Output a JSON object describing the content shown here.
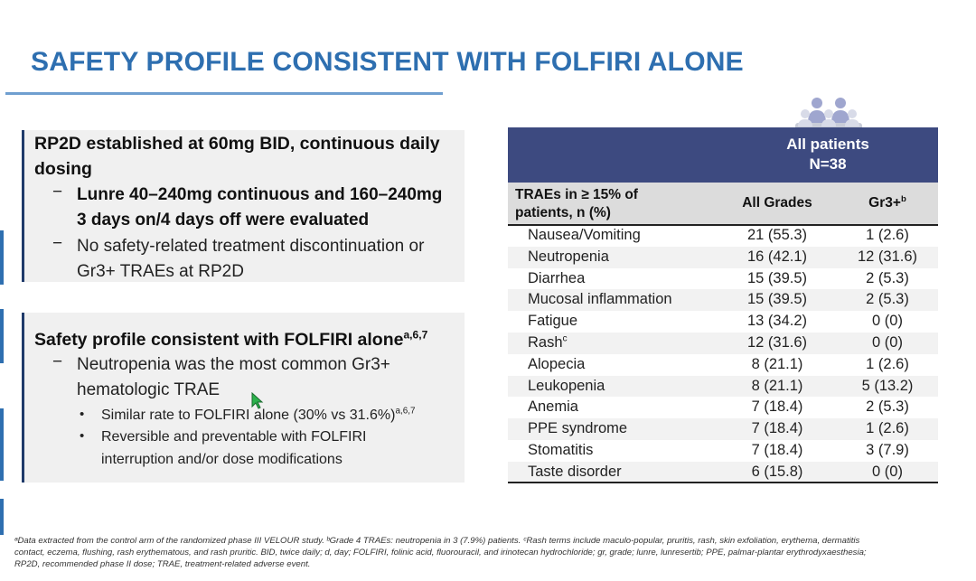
{
  "slide": {
    "title": "SAFETY PROFILE CONSISTENT WITH FOLFIRI ALONE"
  },
  "panel1": {
    "heading_line1": "RP2D established at 60mg BID, continuous daily",
    "heading_line2": "dosing",
    "sub1_line1": "Lunre 40–240mg continuous and 160–240mg",
    "sub1_line2": "3 days on/4 days off were evaluated",
    "sub2_line1": "No safety-related treatment discontinuation or",
    "sub2_line2": "Gr3+ TRAEs at RP2D",
    "dash": "−"
  },
  "panel2": {
    "heading": "Safety profile consistent with FOLFIRI alone",
    "heading_sup": "a,6,7",
    "sub1_line1": "Neutropenia was the most common Gr3+",
    "sub1_line2": "hematologic TRAE",
    "bullet1": "Similar rate to FOLFIRI alone (30% vs 31.6%)",
    "bullet1_sup": "a,6,7",
    "bullet2_line1": "Reversible and preventable with FOLFIRI",
    "bullet2_line2": "interruption and/or dose modifications",
    "dash": "−",
    "dot": "•"
  },
  "table": {
    "group_label": "All patients",
    "group_n": "N=38",
    "col_trae_line1": "TRAEs in ≥ 15% of",
    "col_trae_line2": "patients, n (%)",
    "col_all": "All Grades",
    "col_gr3": "Gr3+",
    "col_gr3_sup": "b",
    "rows": [
      {
        "name": "Nausea/Vomiting",
        "sup": "",
        "all": "21 (55.3)",
        "gr3": "1 (2.6)"
      },
      {
        "name": "Neutropenia",
        "sup": "",
        "all": "16 (42.1)",
        "gr3": "12 (31.6)"
      },
      {
        "name": "Diarrhea",
        "sup": "",
        "all": "15 (39.5)",
        "gr3": "2 (5.3)"
      },
      {
        "name": "Mucosal inflammation",
        "sup": "",
        "all": "15 (39.5)",
        "gr3": "2 (5.3)"
      },
      {
        "name": "Fatigue",
        "sup": "",
        "all": "13 (34.2)",
        "gr3": "0 (0)"
      },
      {
        "name": "Rash",
        "sup": "c",
        "all": "12 (31.6)",
        "gr3": "0 (0)"
      },
      {
        "name": "Alopecia",
        "sup": "",
        "all": "8 (21.1)",
        "gr3": "1 (2.6)"
      },
      {
        "name": "Leukopenia",
        "sup": "",
        "all": "8 (21.1)",
        "gr3": "5 (13.2)"
      },
      {
        "name": "Anemia",
        "sup": "",
        "all": "7 (18.4)",
        "gr3": "2 (5.3)"
      },
      {
        "name": "PPE syndrome",
        "sup": "",
        "all": "7 (18.4)",
        "gr3": "1 (2.6)"
      },
      {
        "name": "Stomatitis",
        "sup": "",
        "all": "7 (18.4)",
        "gr3": "3 (7.9)"
      },
      {
        "name": "Taste disorder",
        "sup": "",
        "all": "6 (15.8)",
        "gr3": "0 (0)"
      }
    ],
    "header_icon": "patients-group-icon"
  },
  "footnote": {
    "line1": "ᵃData extracted from the control arm of the randomized phase III VELOUR study. ᵇGrade 4 TRAEs: neutropenia in 3 (7.9%) patients. ᶜRash terms include maculo-popular, pruritis, rash, skin exfoliation, erythema, dermatitis",
    "line2": "contact, eczema, flushing, rash erythematous, and rash pruritic. BID, twice daily; d, day; FOLFIRI, folinic acid, fluorouracil, and irinotecan hydrochloride; gr, grade; lunre, lunresertib; PPE, palmar-plantar erythrodyxaesthesia;",
    "line3": "RP2D, recommended phase II dose; TRAE, treatment-related adverse event."
  },
  "colors": {
    "title": "#2e6fb0",
    "table_header": "#3d4a80",
    "panel_bg": "#f0f0f0",
    "panel_border": "#1f3a6a"
  }
}
